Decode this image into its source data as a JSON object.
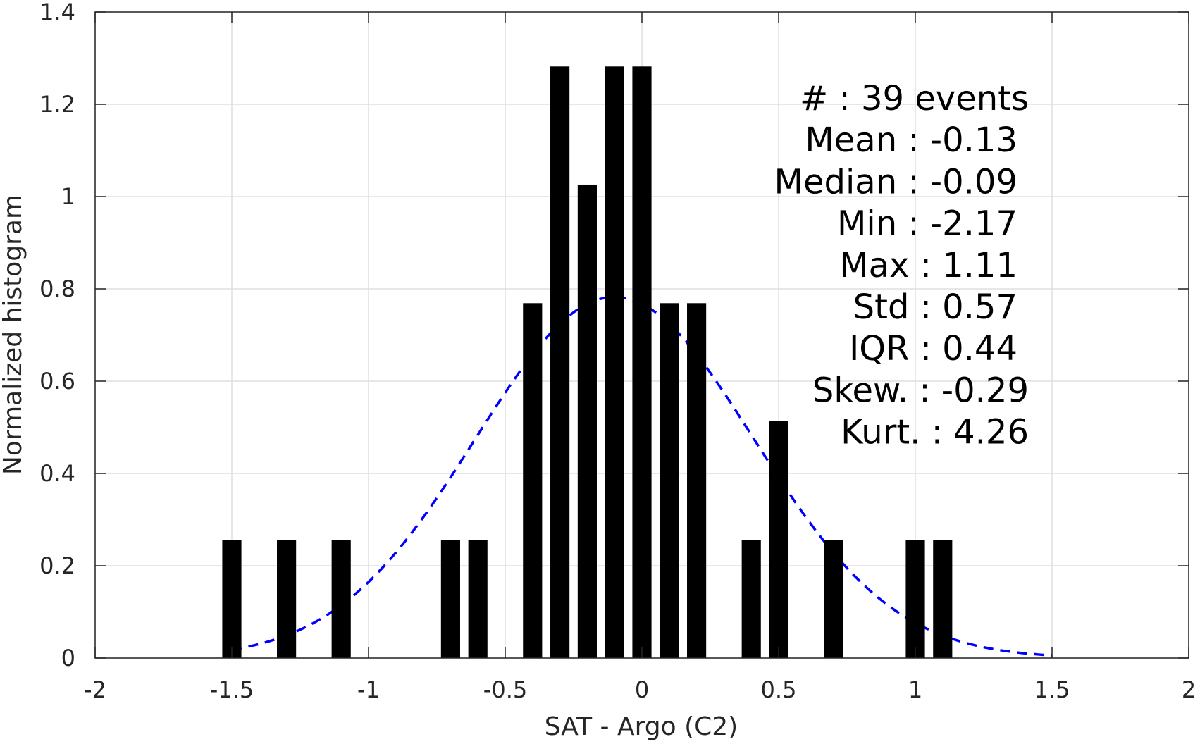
{
  "chart_data": {
    "type": "bar",
    "xlabel": "SAT - Argo (C2)",
    "ylabel": "Normalized histogram",
    "xlim": [
      -2,
      2
    ],
    "ylim": [
      0,
      1.4
    ],
    "xticks": [
      -2,
      -1.5,
      -1,
      -0.5,
      0,
      0.5,
      1,
      1.5,
      2
    ],
    "xtick_labels": [
      "-2",
      "-1.5",
      "-1",
      "-0.5",
      "0",
      "0.5",
      "1",
      "1.5",
      "2"
    ],
    "yticks": [
      0,
      0.2,
      0.4,
      0.6,
      0.8,
      1,
      1.2,
      1.4
    ],
    "ytick_labels": [
      "0",
      "0.2",
      "0.4",
      "0.6",
      "0.8",
      "1",
      "1.2",
      "1.4"
    ],
    "grid": true,
    "bar_color": "#000000",
    "bar_width": 0.07,
    "bars": {
      "x": [
        -1.5,
        -1.3,
        -1.1,
        -0.7,
        -0.6,
        -0.4,
        -0.3,
        -0.2,
        -0.1,
        0.0,
        0.1,
        0.2,
        0.4,
        0.5,
        0.7,
        1.0,
        1.1
      ],
      "values": [
        0.256,
        0.256,
        0.256,
        0.256,
        0.256,
        0.769,
        1.282,
        1.026,
        1.282,
        1.282,
        0.769,
        0.769,
        0.256,
        0.513,
        0.256,
        0.256,
        0.256
      ]
    },
    "fit_curve": {
      "style": "dashed",
      "color": "#0000ff",
      "mean": -0.1,
      "std": 0.51,
      "x_range": [
        -1.5,
        1.5
      ]
    },
    "stats": [
      {
        "label": "#",
        "sep": " : ",
        "value": "39 events"
      },
      {
        "label": "Mean",
        "sep": " : ",
        "value": "-0.13"
      },
      {
        "label": "Median",
        "sep": " : ",
        "value": "-0.09"
      },
      {
        "label": "Min",
        "sep": " : ",
        "value": "-2.17"
      },
      {
        "label": "Max",
        "sep": " : ",
        "value": "1.11"
      },
      {
        "label": "Std",
        "sep": " : ",
        "value": "0.57"
      },
      {
        "label": "IQR",
        "sep": " : ",
        "value": "0.44"
      },
      {
        "label": "Skew.",
        "sep": " : ",
        "value": "-0.29"
      },
      {
        "label": "Kurt.",
        "sep": " : ",
        "value": "4.26"
      }
    ]
  }
}
